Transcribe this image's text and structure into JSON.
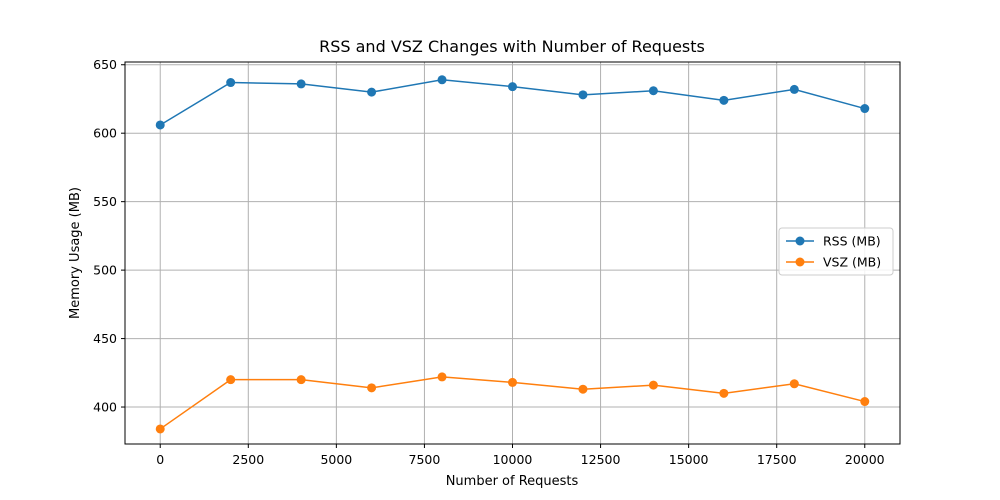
{
  "chart_data": {
    "type": "line",
    "title": "RSS and VSZ Changes with Number of Requests",
    "xlabel": "Number of Requests",
    "ylabel": "Memory Usage (MB)",
    "xlim": [
      -1000,
      21000
    ],
    "ylim": [
      373,
      652
    ],
    "xticks": [
      0,
      2500,
      5000,
      7500,
      10000,
      12500,
      15000,
      17500,
      20000
    ],
    "yticks": [
      400,
      450,
      500,
      550,
      600,
      650
    ],
    "grid": true,
    "legend_position": "center-right",
    "x": [
      0,
      2000,
      4000,
      6000,
      8000,
      10000,
      12000,
      14000,
      16000,
      18000,
      20000
    ],
    "series": [
      {
        "name": "RSS (MB)",
        "color": "#1f77b4",
        "values": [
          606,
          637,
          636,
          630,
          639,
          634,
          628,
          631,
          624,
          632,
          618
        ]
      },
      {
        "name": "VSZ (MB)",
        "color": "#ff7f0e",
        "values": [
          384,
          420,
          420,
          414,
          422,
          418,
          413,
          416,
          410,
          417,
          404
        ]
      }
    ]
  }
}
